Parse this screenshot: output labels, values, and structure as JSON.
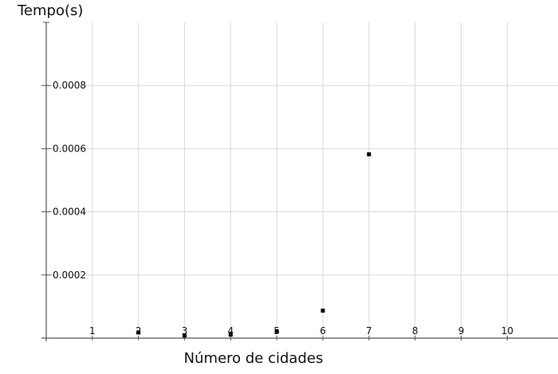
{
  "chart_data": {
    "type": "scatter",
    "title": "",
    "xlabel": "Número de cidades",
    "ylabel": "Tempo(s)",
    "xlim": [
      0,
      11.1
    ],
    "ylim": [
      0,
      0.001
    ],
    "xticks": [
      1,
      2,
      3,
      4,
      5,
      6,
      7,
      8,
      9,
      10
    ],
    "yticks": [
      0.0002,
      0.0004,
      0.0006,
      0.0008
    ],
    "ytick_labels": [
      "0.0002",
      "0.0004",
      "0.0006",
      "0.0008"
    ],
    "grid": true,
    "marker_color": "#000000",
    "points": [
      {
        "x": 2,
        "y": 1.8e-05
      },
      {
        "x": 3,
        "y": 8e-06
      },
      {
        "x": 4,
        "y": 1.1e-05
      },
      {
        "x": 5,
        "y": 2.2e-05
      },
      {
        "x": 6,
        "y": 8.7e-05
      },
      {
        "x": 7,
        "y": 0.000582
      }
    ]
  }
}
